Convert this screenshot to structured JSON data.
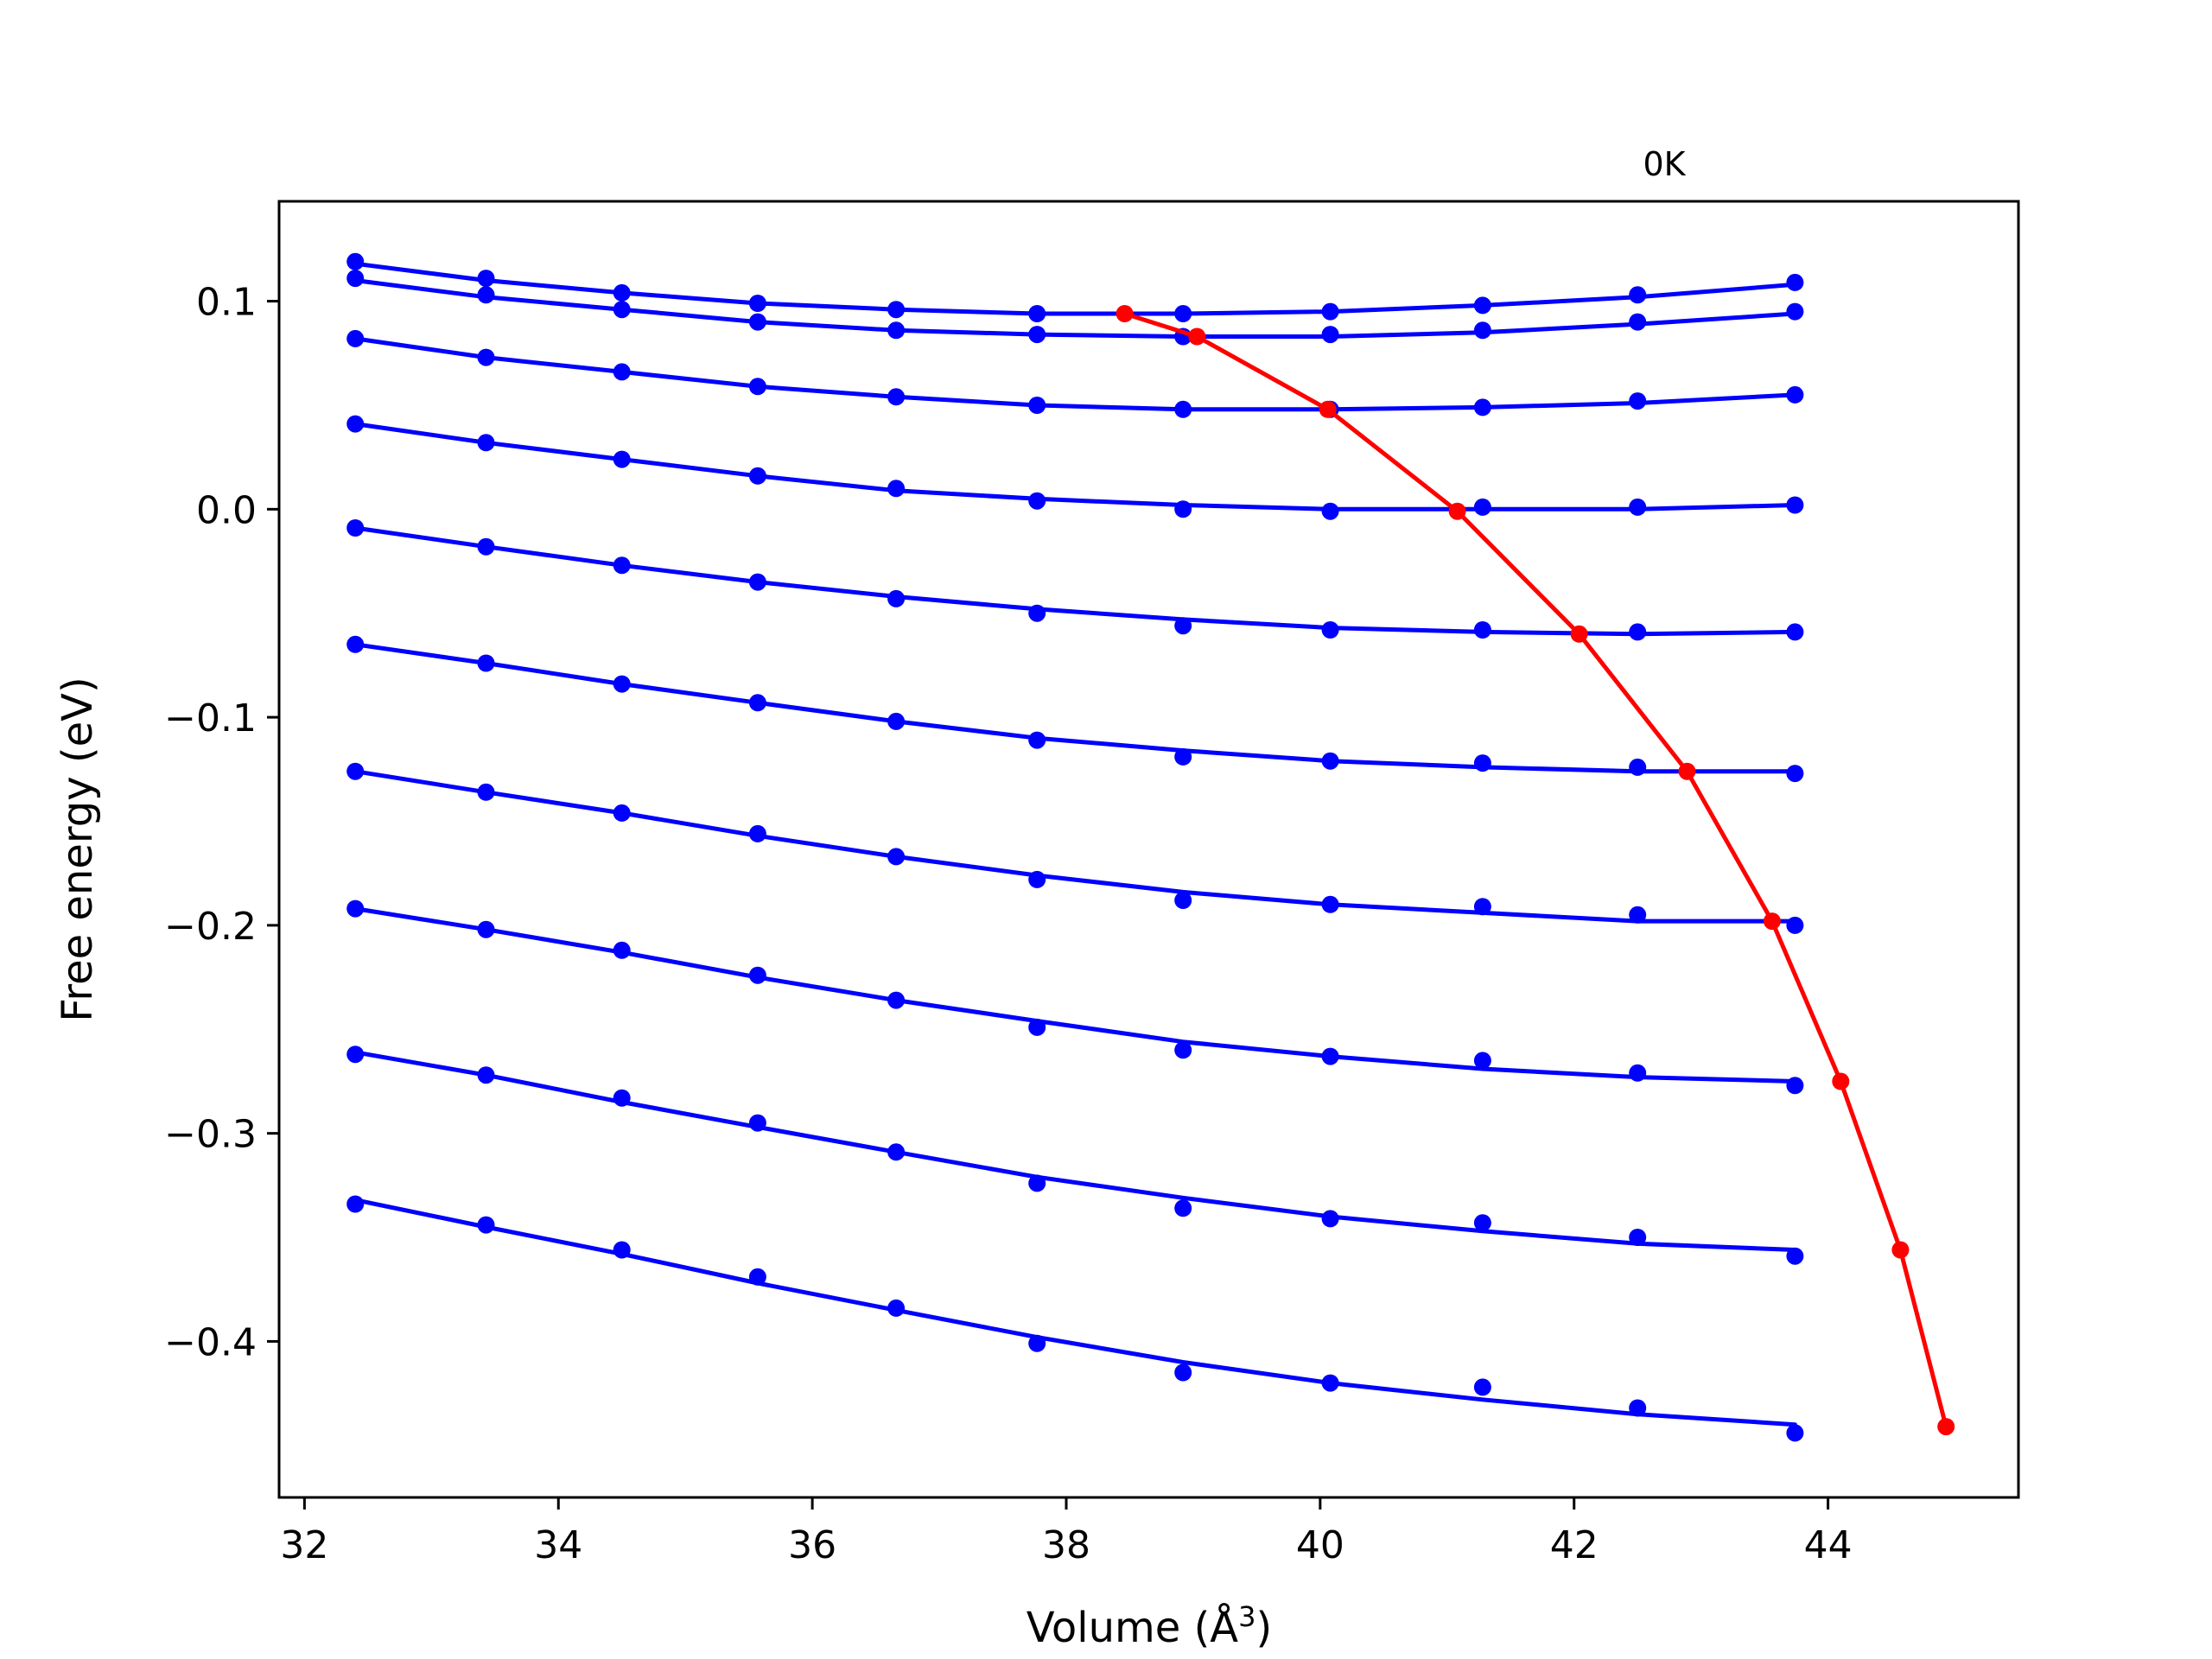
{
  "chart_data": {
    "type": "line",
    "title": "",
    "annotation": "0K",
    "xlabel": "Volume (Å",
    "xlabel_superscript": "3",
    "xlabel_close": ")",
    "ylabel": "Free energy (eV)",
    "xlim": [
      31.8,
      45.5
    ],
    "ylim": [
      -0.475,
      0.148
    ],
    "xticks": [
      32,
      34,
      36,
      38,
      40,
      42,
      44
    ],
    "yticks": [
      0.1,
      0.0,
      -0.1,
      -0.2,
      -0.3,
      -0.4
    ],
    "ytick_labels": [
      "0.1",
      "0.0",
      "−0.1",
      "−0.2",
      "−0.3",
      "−0.4"
    ],
    "grid": false,
    "legend": "none",
    "colors": {
      "isotherm": "#0000ff",
      "minimum_path": "#ff0000",
      "axes": "#000000"
    },
    "volumes": [
      32.4,
      33.43,
      34.5,
      35.57,
      36.66,
      37.77,
      38.92,
      40.08,
      41.28,
      42.5,
      43.74
    ],
    "isotherms": [
      {
        "points": [
          0.119,
          0.111,
          0.104,
          0.099,
          0.096,
          0.094,
          0.094,
          0.095,
          0.098,
          0.103,
          0.109
        ],
        "fit": [
          0.118,
          0.11,
          0.104,
          0.099,
          0.096,
          0.094,
          0.094,
          0.095,
          0.098,
          0.102,
          0.108
        ]
      },
      {
        "points": [
          0.111,
          0.103,
          0.096,
          0.09,
          0.086,
          0.084,
          0.083,
          0.084,
          0.086,
          0.09,
          0.095
        ],
        "fit": [
          0.11,
          0.102,
          0.096,
          0.09,
          0.086,
          0.084,
          0.083,
          0.083,
          0.085,
          0.089,
          0.094
        ]
      },
      {
        "points": [
          0.082,
          0.073,
          0.066,
          0.059,
          0.054,
          0.05,
          0.048,
          0.048,
          0.049,
          0.052,
          0.055
        ],
        "fit": [
          0.082,
          0.073,
          0.066,
          0.059,
          0.054,
          0.05,
          0.048,
          0.048,
          0.049,
          0.051,
          0.055
        ]
      },
      {
        "points": [
          0.041,
          0.032,
          0.024,
          0.016,
          0.01,
          0.004,
          0.0,
          -0.001,
          0.001,
          0.001,
          0.002
        ],
        "fit": [
          0.041,
          0.032,
          0.024,
          0.016,
          0.009,
          0.005,
          0.002,
          0.0,
          0.0,
          0.0,
          0.002
        ]
      },
      {
        "points": [
          -0.009,
          -0.018,
          -0.027,
          -0.035,
          -0.043,
          -0.05,
          -0.056,
          -0.058,
          -0.058,
          -0.059,
          -0.059
        ],
        "fit": [
          -0.009,
          -0.018,
          -0.027,
          -0.035,
          -0.042,
          -0.048,
          -0.053,
          -0.057,
          -0.059,
          -0.06,
          -0.059
        ]
      },
      {
        "points": [
          -0.065,
          -0.074,
          -0.084,
          -0.093,
          -0.102,
          -0.111,
          -0.119,
          -0.121,
          -0.122,
          -0.124,
          -0.127
        ],
        "fit": [
          -0.065,
          -0.074,
          -0.084,
          -0.093,
          -0.102,
          -0.11,
          -0.116,
          -0.121,
          -0.124,
          -0.126,
          -0.126
        ]
      },
      {
        "points": [
          -0.126,
          -0.136,
          -0.146,
          -0.156,
          -0.167,
          -0.178,
          -0.188,
          -0.19,
          -0.191,
          -0.195,
          -0.2
        ],
        "fit": [
          -0.126,
          -0.136,
          -0.146,
          -0.157,
          -0.167,
          -0.176,
          -0.184,
          -0.19,
          -0.194,
          -0.198,
          -0.198
        ]
      },
      {
        "points": [
          -0.192,
          -0.202,
          -0.212,
          -0.224,
          -0.236,
          -0.249,
          -0.26,
          -0.263,
          -0.265,
          -0.271,
          -0.277
        ],
        "fit": [
          -0.192,
          -0.202,
          -0.213,
          -0.225,
          -0.236,
          -0.246,
          -0.256,
          -0.263,
          -0.269,
          -0.273,
          -0.275
        ]
      },
      {
        "points": [
          -0.262,
          -0.272,
          -0.283,
          -0.295,
          -0.309,
          -0.324,
          -0.336,
          -0.341,
          -0.343,
          -0.35,
          -0.359
        ],
        "fit": [
          -0.261,
          -0.272,
          -0.285,
          -0.297,
          -0.309,
          -0.321,
          -0.331,
          -0.34,
          -0.347,
          -0.353,
          -0.356
        ]
      },
      {
        "points": [
          -0.334,
          -0.344,
          -0.356,
          -0.369,
          -0.384,
          -0.401,
          -0.415,
          -0.42,
          -0.422,
          -0.432,
          -0.444
        ],
        "fit": [
          -0.332,
          -0.345,
          -0.358,
          -0.372,
          -0.385,
          -0.398,
          -0.41,
          -0.42,
          -0.428,
          -0.435,
          -0.44
        ]
      }
    ],
    "minimum_path": {
      "x": [
        38.46,
        39.03,
        40.06,
        41.08,
        42.04,
        42.89,
        43.56,
        44.1,
        44.57,
        44.93
      ],
      "y": [
        0.094,
        0.083,
        0.048,
        -0.001,
        -0.06,
        -0.126,
        -0.198,
        -0.275,
        -0.356,
        -0.441
      ]
    }
  }
}
